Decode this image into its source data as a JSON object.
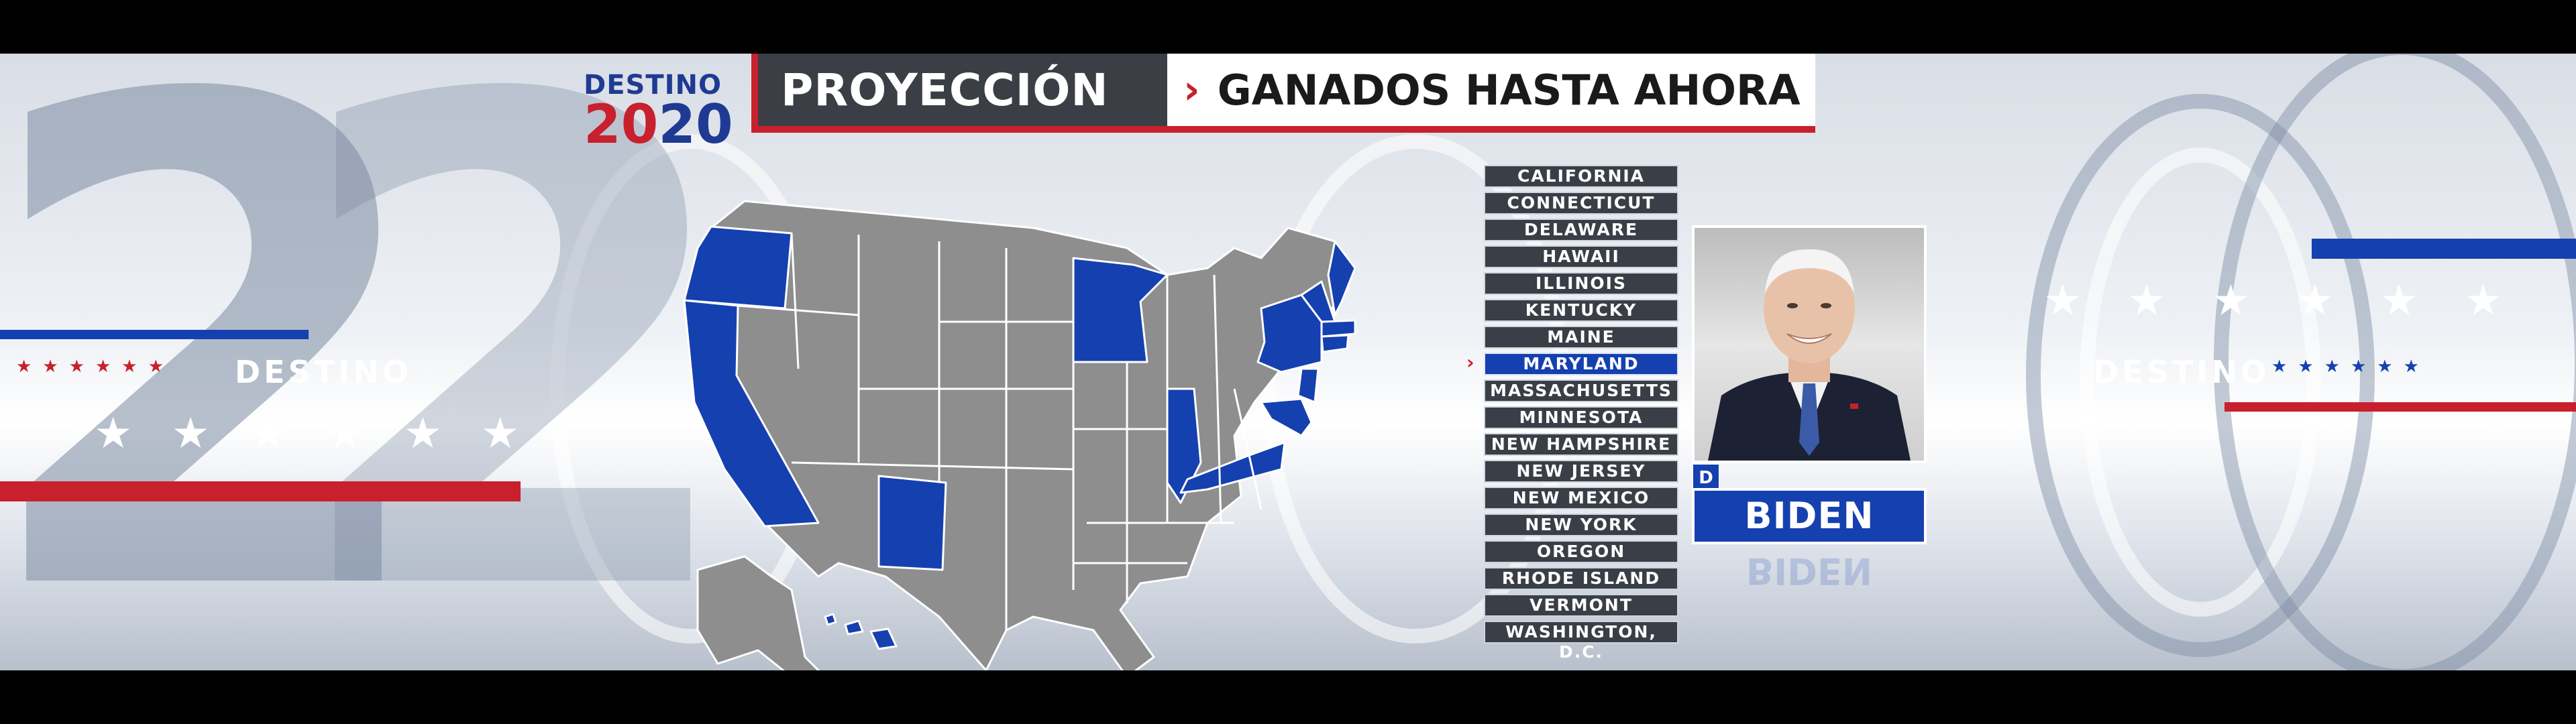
{
  "logo": {
    "line1": "DESTINO",
    "year_red": "20",
    "year_blue": "20"
  },
  "header": {
    "projection": "PROYECCIÓN",
    "won_chevron": "›",
    "won": "GANADOS HASTA AHORA"
  },
  "decor": {
    "left_label": "DESTINO",
    "right_label": "DESTINO",
    "digit_two": "2",
    "digit_zero": "0",
    "star": "★"
  },
  "states": [
    "CALIFORNIA",
    "CONNECTICUT",
    "DELAWARE",
    "HAWAII",
    "ILLINOIS",
    "KENTUCKY",
    "MAINE",
    "MARYLAND",
    "MASSACHUSETTS",
    "MINNESOTA",
    "NEW HAMPSHIRE",
    "NEW JERSEY",
    "NEW MEXICO",
    "NEW YORK",
    "OREGON",
    "RHODE ISLAND",
    "VERMONT",
    "WASHINGTON, D.C."
  ],
  "selected_state": "MARYLAND",
  "list_pointer": "›",
  "candidate": {
    "name": "BIDEN",
    "party": "D"
  },
  "colors": {
    "won": "#1540b0",
    "not_called": "#8e8e8e",
    "accent_red": "#c8202d",
    "header_dark": "#3b3f45"
  }
}
